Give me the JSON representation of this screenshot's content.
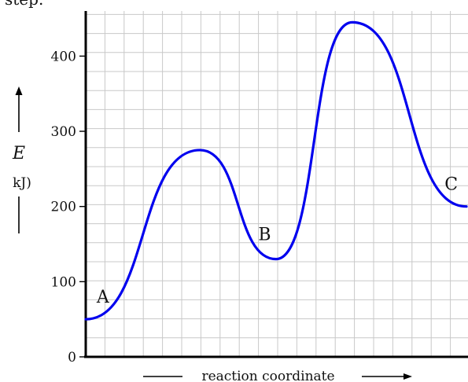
{
  "header_fragment": "step.",
  "chart_data": {
    "type": "line",
    "title": "",
    "xlabel": "reaction coordinate",
    "ylabel_symbol": "E",
    "ylabel_unit": "kJ)",
    "ylim": [
      0,
      460
    ],
    "yticks": [
      0,
      100,
      200,
      300,
      400
    ],
    "ytick_labels": [
      "0",
      "100",
      "200",
      "300",
      "400"
    ],
    "grid": true,
    "x": [
      0,
      1,
      2,
      3,
      4,
      5,
      6,
      7,
      8,
      9,
      10
    ],
    "series": [
      {
        "color": "#0000ee",
        "points": [
          {
            "x": 0,
            "y": 50
          },
          {
            "x": 3,
            "y": 275
          },
          {
            "x": 5,
            "y": 130
          },
          {
            "x": 7,
            "y": 445
          },
          {
            "x": 10,
            "y": 200
          }
        ]
      }
    ],
    "annotations": [
      {
        "text": "A",
        "x": 0.45,
        "y": 72
      },
      {
        "text": "B",
        "x": 4.7,
        "y": 155
      },
      {
        "text": "C",
        "x": 9.6,
        "y": 222
      }
    ]
  }
}
